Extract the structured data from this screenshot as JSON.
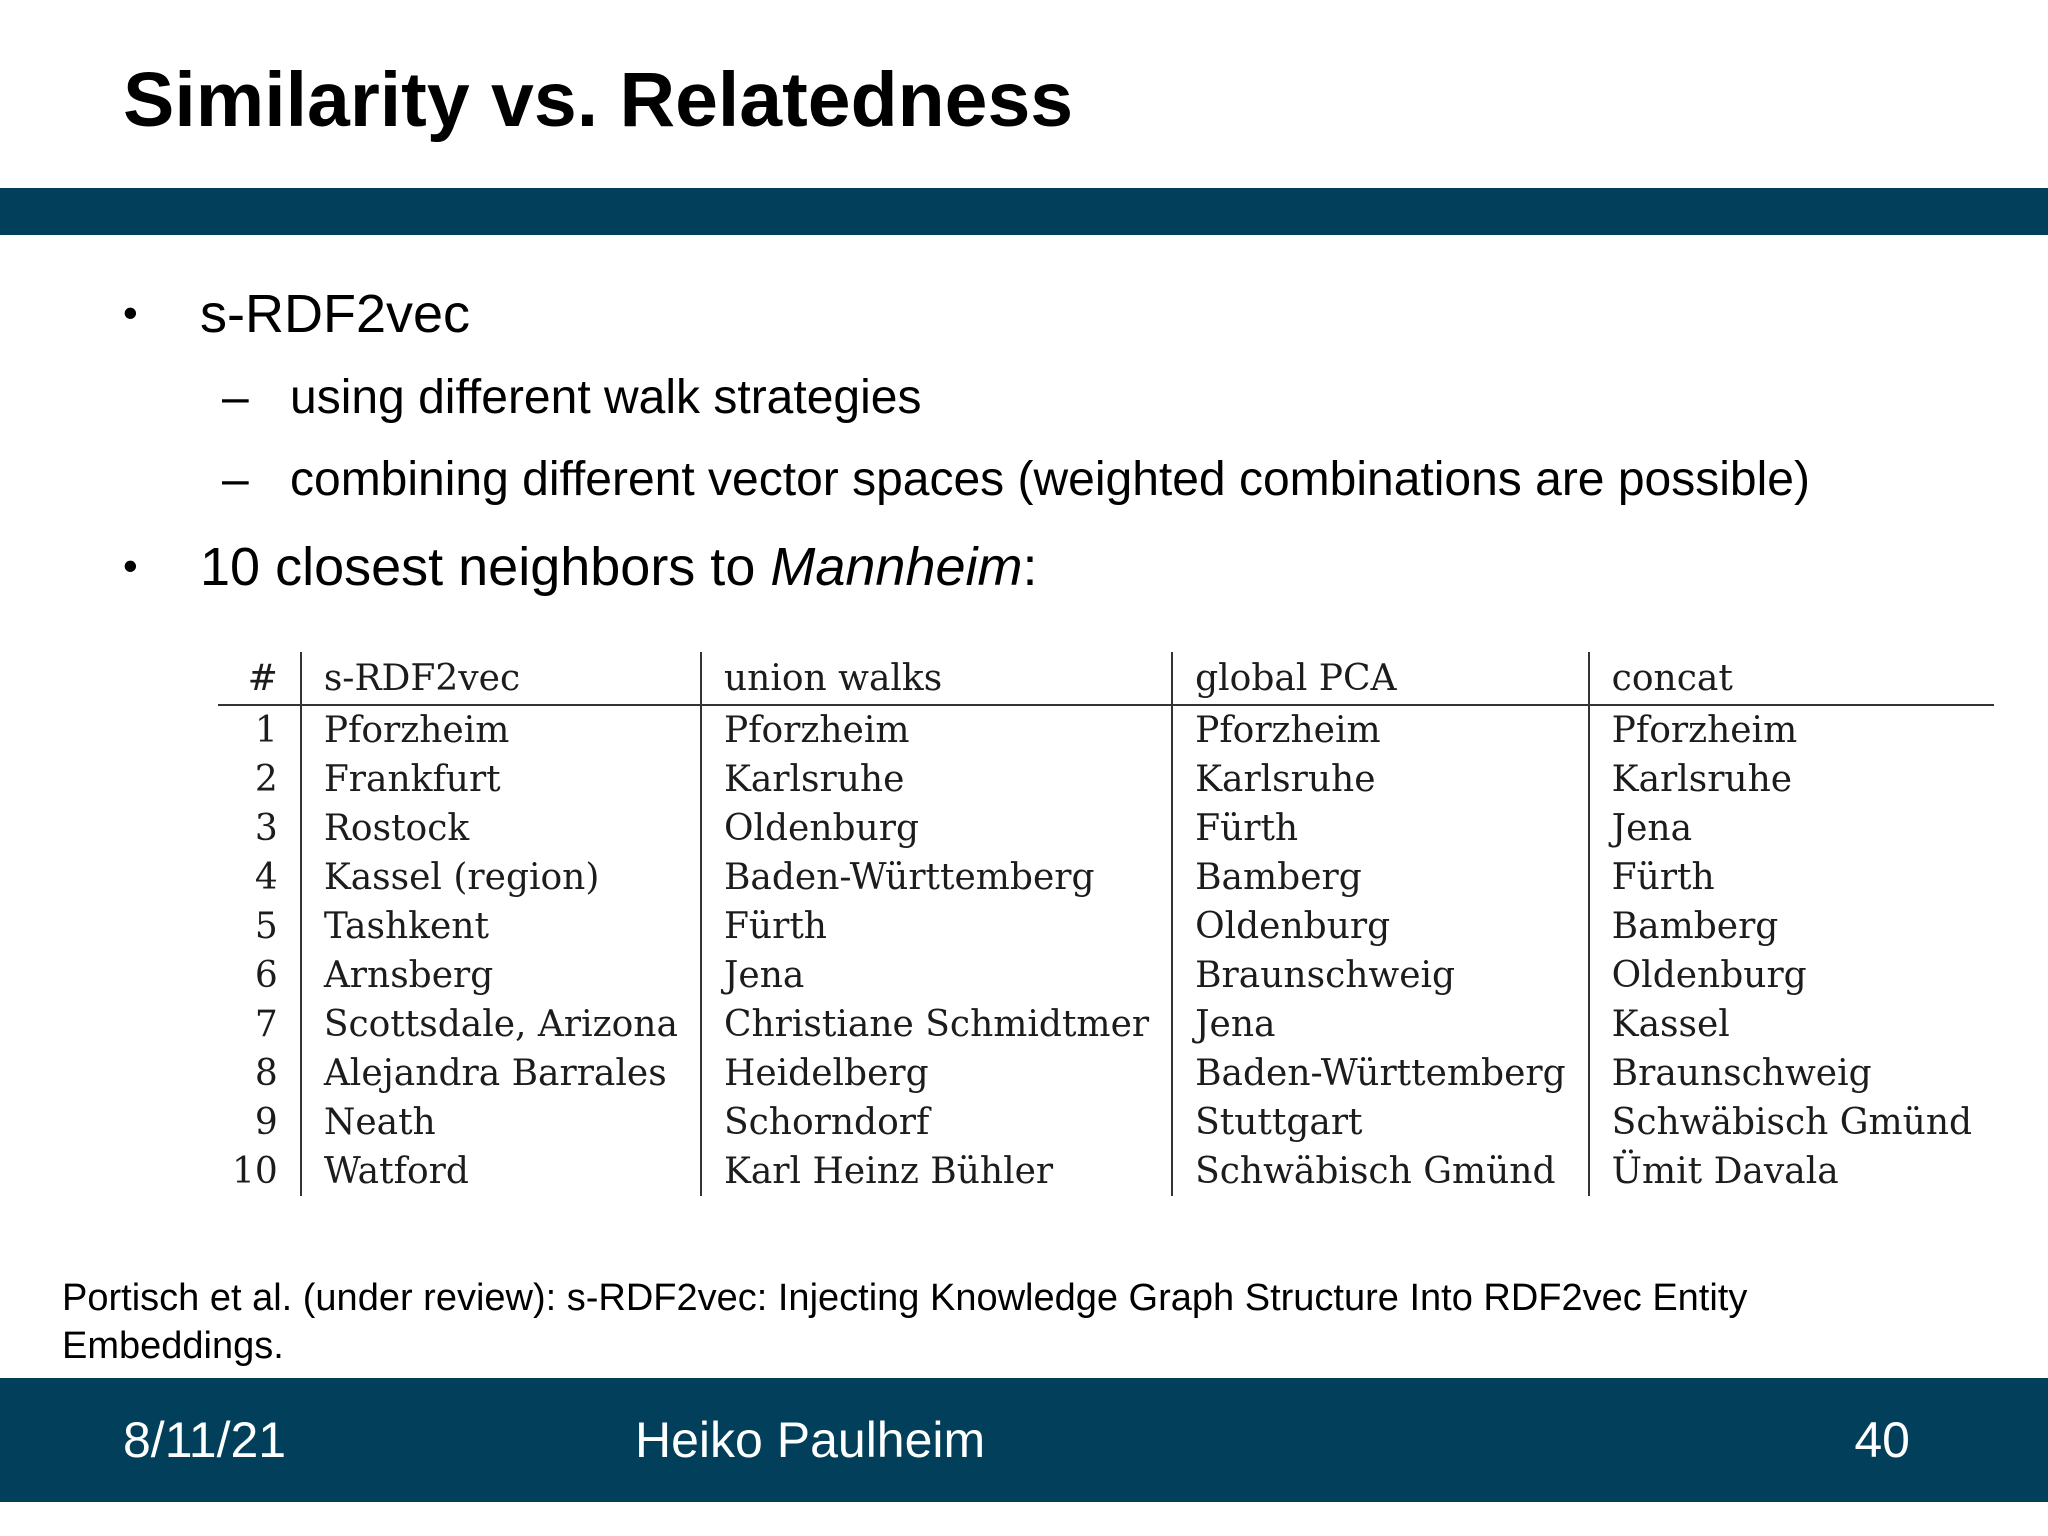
{
  "slide": {
    "title": "Similarity vs. Relatedness"
  },
  "bullets": {
    "bullet_char": "•",
    "dash_char": "–",
    "item1": "s-RDF2vec",
    "item1_sub1": "using different walk strategies",
    "item1_sub2": "combining different vector spaces (weighted combinations are possible)",
    "item2_prefix": "10 closest neighbors to ",
    "item2_emphasis": "Mannheim",
    "item2_suffix": ":"
  },
  "table": {
    "headers": [
      "#",
      "s-RDF2vec",
      "union walks",
      "global PCA",
      "concat"
    ],
    "rows": [
      [
        "1",
        "Pforzheim",
        "Pforzheim",
        "Pforzheim",
        "Pforzheim"
      ],
      [
        "2",
        "Frankfurt",
        "Karlsruhe",
        "Karlsruhe",
        "Karlsruhe"
      ],
      [
        "3",
        "Rostock",
        "Oldenburg",
        "Fürth",
        "Jena"
      ],
      [
        "4",
        "Kassel (region)",
        "Baden-Württemberg",
        "Bamberg",
        "Fürth"
      ],
      [
        "5",
        "Tashkent",
        "Fürth",
        "Oldenburg",
        "Bamberg"
      ],
      [
        "6",
        "Arnsberg",
        "Jena",
        "Braunschweig",
        "Oldenburg"
      ],
      [
        "7",
        "Scottsdale, Arizona",
        "Christiane Schmidtmer",
        "Jena",
        "Kassel"
      ],
      [
        "8",
        "Alejandra Barrales",
        "Heidelberg",
        "Baden-Württemberg",
        "Braunschweig"
      ],
      [
        "9",
        "Neath",
        "Schorndorf",
        "Stuttgart",
        "Schwäbisch Gmünd"
      ],
      [
        "10",
        "Watford",
        "Karl Heinz Bühler",
        "Schwäbisch Gmünd",
        "Ümit Davala"
      ]
    ]
  },
  "citation": "Portisch et al. (under review): s-RDF2vec: Injecting Knowledge Graph Structure Into RDF2vec Entity Embeddings.",
  "footer": {
    "date": "8/11/21",
    "author": "Heiko Paulheim",
    "page": "40"
  },
  "colors": {
    "band": "#013f5a",
    "background": "#ffffff"
  }
}
